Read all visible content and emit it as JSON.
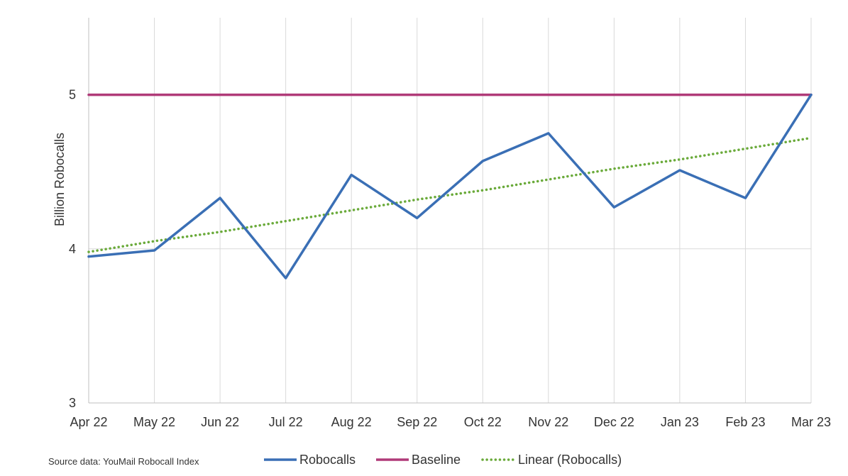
{
  "chart_data": {
    "type": "line",
    "ylabel": "Billion Robocalls",
    "ylim": [
      3,
      5.5
    ],
    "yticks": [
      3,
      4,
      5
    ],
    "grid": true,
    "legend_position": "bottom",
    "categories": [
      "Apr 22",
      "May 22",
      "Jun 22",
      "Jul 22",
      "Aug 22",
      "Sep 22",
      "Oct 22",
      "Nov 22",
      "Dec 22",
      "Jan 23",
      "Feb 23",
      "Mar 23"
    ],
    "series": [
      {
        "name": "Robocalls",
        "color": "#3a6fb5",
        "style": "solid",
        "values": [
          3.95,
          3.99,
          4.33,
          3.81,
          4.48,
          4.2,
          4.57,
          4.75,
          4.27,
          4.51,
          4.33,
          5.0
        ]
      },
      {
        "name": "Baseline",
        "color": "#b03a78",
        "style": "solid",
        "values": [
          5,
          5,
          5,
          5,
          5,
          5,
          5,
          5,
          5,
          5,
          5,
          5
        ]
      },
      {
        "name": "Linear (Robocalls)",
        "color": "#6aaa3a",
        "style": "dotted",
        "values": [
          3.98,
          4.05,
          4.11,
          4.18,
          4.25,
          4.32,
          4.38,
          4.45,
          4.52,
          4.58,
          4.65,
          4.72
        ]
      }
    ],
    "source": "Source data: YouMail Robocall Index"
  }
}
